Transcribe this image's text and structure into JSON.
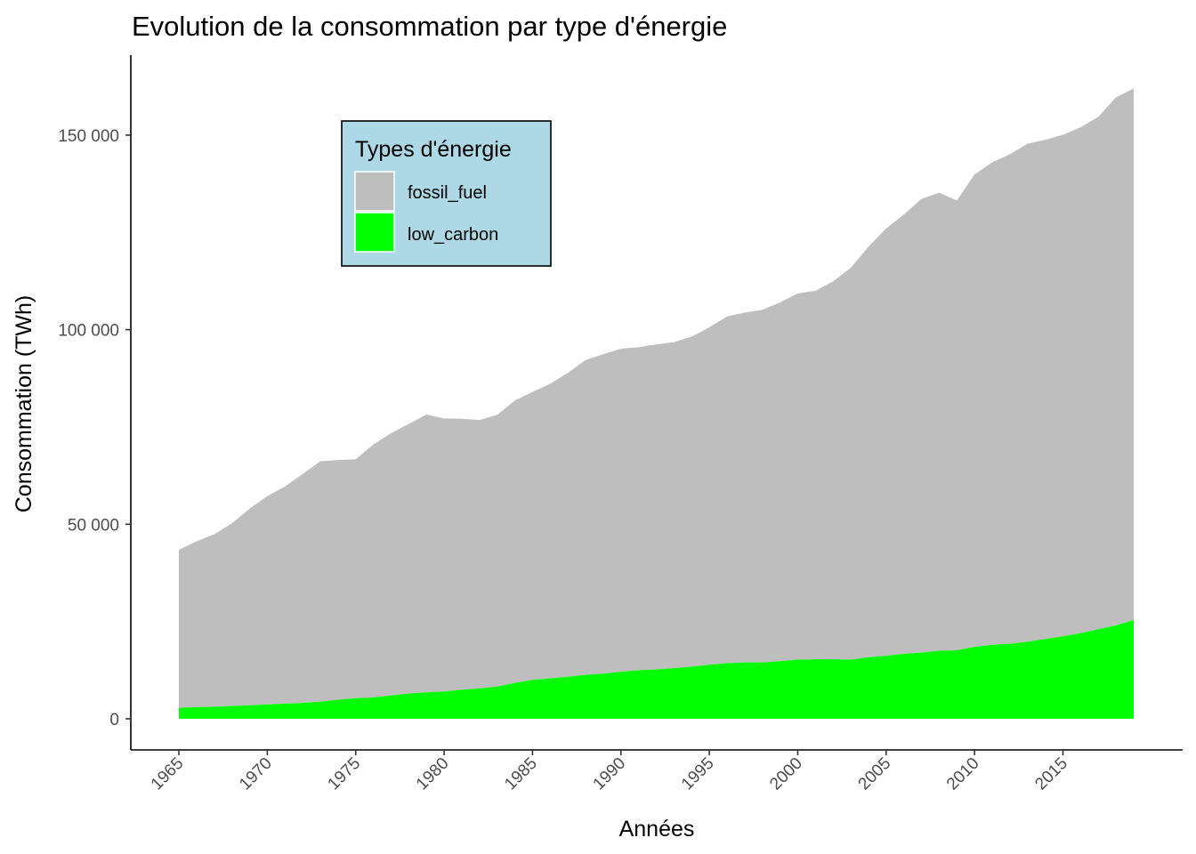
{
  "chart_data": {
    "type": "area",
    "stacked": true,
    "title": "Evolution de la consommation par type d'énergie",
    "xlabel": "Années",
    "ylabel": "Consommation (TWh)",
    "xlim": [
      1965,
      2019
    ],
    "ylim": [
      0,
      160000
    ],
    "x_ticks": [
      "1965",
      "1970",
      "1975",
      "1980",
      "1985",
      "1990",
      "1995",
      "2000",
      "2005",
      "2010",
      "2015"
    ],
    "y_ticks": [
      {
        "value": 0,
        "label": "0"
      },
      {
        "value": 50000,
        "label": "50 000"
      },
      {
        "value": 100000,
        "label": "100 000"
      },
      {
        "value": 150000,
        "label": "150 000"
      }
    ],
    "grid": false,
    "legend": {
      "title": "Types d'énergie",
      "placement": "top-left, inside plot",
      "background": "#add8e6"
    },
    "x": [
      1965,
      1966,
      1967,
      1968,
      1969,
      1970,
      1971,
      1972,
      1973,
      1974,
      1975,
      1976,
      1977,
      1978,
      1979,
      1980,
      1981,
      1982,
      1983,
      1984,
      1985,
      1986,
      1987,
      1988,
      1989,
      1990,
      1991,
      1992,
      1993,
      1994,
      1995,
      1996,
      1997,
      1998,
      1999,
      2000,
      2001,
      2002,
      2003,
      2004,
      2005,
      2006,
      2007,
      2008,
      2009,
      2010,
      2011,
      2012,
      2013,
      2014,
      2015,
      2016,
      2017,
      2018,
      2019
    ],
    "series": [
      {
        "name": "low_carbon",
        "color": "#00ff00",
        "values": [
          2800,
          3000,
          3100,
          3300,
          3500,
          3700,
          3900,
          4100,
          4400,
          4900,
          5300,
          5500,
          6000,
          6500,
          6800,
          7000,
          7500,
          7800,
          8300,
          9200,
          10000,
          10400,
          10800,
          11300,
          11600,
          12100,
          12500,
          12700,
          13000,
          13400,
          13900,
          14300,
          14500,
          14500,
          14800,
          15200,
          15300,
          15300,
          15200,
          15800,
          16200,
          16700,
          17000,
          17500,
          17600,
          18500,
          19000,
          19300,
          19800,
          20500,
          21200,
          22000,
          23000,
          24000,
          25400
        ]
      },
      {
        "name": "fossil_fuel",
        "color": "#bebebe",
        "values": [
          40600,
          42600,
          44300,
          46900,
          50500,
          53500,
          55800,
          58800,
          61800,
          61600,
          61400,
          65000,
          67400,
          69300,
          71400,
          70200,
          69600,
          69000,
          69800,
          72600,
          74000,
          75700,
          78100,
          80900,
          82100,
          83000,
          83000,
          83500,
          83800,
          84800,
          86700,
          89100,
          89900,
          90600,
          92200,
          94100,
          94700,
          97100,
          100700,
          105500,
          109800,
          112900,
          116600,
          117700,
          115600,
          121400,
          124000,
          125800,
          128000,
          128300,
          128900,
          130000,
          131700,
          135700,
          136600
        ]
      }
    ]
  }
}
